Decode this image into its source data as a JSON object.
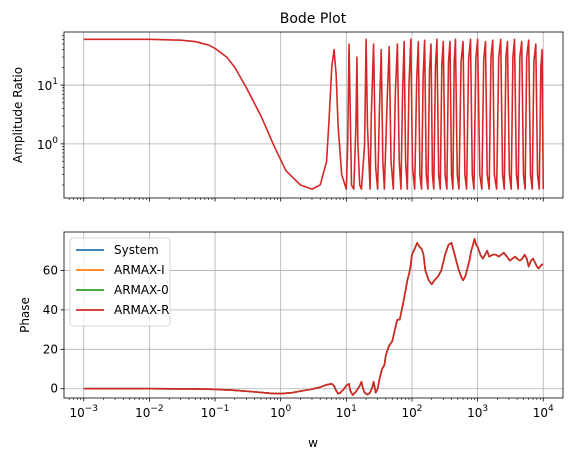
{
  "chart_data": [
    {
      "type": "line",
      "title": "Bode Plot",
      "xlabel": "",
      "ylabel": "Amplitude Ratio",
      "xscale": "log",
      "yscale": "log",
      "xlim": [
        0.0005,
        20000
      ],
      "ylim": [
        0.12,
        80
      ],
      "x_ticks": [
        {
          "value": 0.001,
          "label": ""
        },
        {
          "value": 0.01,
          "label": ""
        },
        {
          "value": 0.1,
          "label": ""
        },
        {
          "value": 1,
          "label": ""
        },
        {
          "value": 10,
          "label": ""
        },
        {
          "value": 100,
          "label": ""
        },
        {
          "value": 1000,
          "label": ""
        },
        {
          "value": 10000,
          "label": ""
        }
      ],
      "y_ticks": [
        {
          "value": 1,
          "base": "10",
          "exp": "0"
        },
        {
          "value": 10,
          "base": "10",
          "exp": "1"
        }
      ],
      "grid": true,
      "color": "#d62728",
      "curve": [
        [
          0.001,
          60
        ],
        [
          0.01,
          60
        ],
        [
          0.03,
          58
        ],
        [
          0.05,
          55
        ],
        [
          0.08,
          48
        ],
        [
          0.1,
          42
        ],
        [
          0.15,
          30
        ],
        [
          0.2,
          20
        ],
        [
          0.3,
          9
        ],
        [
          0.5,
          3
        ],
        [
          0.8,
          0.9
        ],
        [
          1.2,
          0.35
        ],
        [
          2,
          0.2
        ],
        [
          3,
          0.17
        ],
        [
          4,
          0.2
        ],
        [
          5,
          0.5
        ],
        [
          5.5,
          3
        ],
        [
          6,
          20
        ],
        [
          6.5,
          40
        ],
        [
          7,
          15
        ],
        [
          7.5,
          2
        ],
        [
          8.5,
          0.3
        ],
        [
          10,
          0.17
        ],
        [
          10.5,
          1
        ],
        [
          11,
          50
        ],
        [
          11.5,
          3
        ],
        [
          12,
          0.2
        ],
        [
          13,
          0.17
        ],
        [
          14,
          2
        ],
        [
          14.5,
          30
        ],
        [
          15,
          1
        ],
        [
          16,
          0.2
        ],
        [
          17,
          0.17
        ],
        [
          19,
          1
        ],
        [
          20,
          60
        ],
        [
          21,
          2
        ],
        [
          23,
          0.17
        ],
        [
          24,
          3
        ],
        [
          26,
          50
        ],
        [
          28,
          0.4
        ],
        [
          30,
          0.17
        ],
        [
          32,
          4
        ],
        [
          34,
          40
        ],
        [
          36,
          0.5
        ],
        [
          38,
          0.17
        ],
        [
          42,
          6
        ],
        [
          45,
          45
        ],
        [
          48,
          0.5
        ],
        [
          52,
          0.17
        ],
        [
          56,
          8
        ],
        [
          60,
          50
        ],
        [
          64,
          0.5
        ],
        [
          68,
          0.17
        ],
        [
          72,
          8
        ],
        [
          76,
          55
        ],
        [
          80,
          0.5
        ],
        [
          85,
          0.17
        ],
        [
          90,
          10
        ],
        [
          96,
          60
        ],
        [
          102,
          0.4
        ],
        [
          110,
          0.17
        ],
        [
          118,
          12
        ],
        [
          125,
          55
        ],
        [
          132,
          0.3
        ],
        [
          140,
          0.17
        ],
        [
          148,
          14
        ],
        [
          156,
          58
        ],
        [
          165,
          0.3
        ],
        [
          175,
          0.17
        ],
        [
          185,
          18
        ],
        [
          195,
          50
        ],
        [
          205,
          0.3
        ],
        [
          215,
          0.17
        ],
        [
          228,
          20
        ],
        [
          240,
          60
        ],
        [
          255,
          0.3
        ],
        [
          270,
          0.17
        ],
        [
          285,
          22
        ],
        [
          300,
          55
        ],
        [
          320,
          0.3
        ],
        [
          340,
          0.17
        ],
        [
          360,
          25
        ],
        [
          380,
          55
        ],
        [
          400,
          0.3
        ],
        [
          420,
          0.17
        ],
        [
          440,
          25
        ],
        [
          460,
          60
        ],
        [
          490,
          0.3
        ],
        [
          520,
          0.17
        ],
        [
          560,
          25
        ],
        [
          600,
          55
        ],
        [
          640,
          0.3
        ],
        [
          680,
          0.17
        ],
        [
          730,
          28
        ],
        [
          780,
          60
        ],
        [
          830,
          0.3
        ],
        [
          880,
          0.17
        ],
        [
          940,
          28
        ],
        [
          1000,
          60
        ],
        [
          1080,
          0.3
        ],
        [
          1160,
          0.17
        ],
        [
          1240,
          28
        ],
        [
          1320,
          55
        ],
        [
          1400,
          0.3
        ],
        [
          1500,
          0.17
        ],
        [
          1600,
          30
        ],
        [
          1700,
          58
        ],
        [
          1800,
          0.3
        ],
        [
          1950,
          0.17
        ],
        [
          2100,
          30
        ],
        [
          2250,
          60
        ],
        [
          2400,
          0.3
        ],
        [
          2550,
          0.17
        ],
        [
          2700,
          30
        ],
        [
          2850,
          55
        ],
        [
          3050,
          0.3
        ],
        [
          3250,
          0.17
        ],
        [
          3450,
          30
        ],
        [
          3650,
          60
        ],
        [
          3900,
          0.3
        ],
        [
          4150,
          0.17
        ],
        [
          4400,
          30
        ],
        [
          4700,
          55
        ],
        [
          5000,
          0.3
        ],
        [
          5300,
          0.17
        ],
        [
          5600,
          30
        ],
        [
          6000,
          58
        ],
        [
          6400,
          0.3
        ],
        [
          6800,
          0.17
        ],
        [
          7200,
          25
        ],
        [
          7700,
          50
        ],
        [
          8200,
          0.3
        ],
        [
          8700,
          0.17
        ],
        [
          9200,
          20
        ],
        [
          9600,
          40
        ],
        [
          10000,
          0.17
        ]
      ]
    },
    {
      "type": "line",
      "title": "",
      "xlabel": "w",
      "ylabel": "Phase",
      "xscale": "log",
      "yscale": "linear",
      "xlim": [
        0.0005,
        20000
      ],
      "ylim": [
        -4.7,
        79.5
      ],
      "x_ticks": [
        {
          "value": 0.001,
          "base": "10",
          "exp": "−3"
        },
        {
          "value": 0.01,
          "base": "10",
          "exp": "−2"
        },
        {
          "value": 0.1,
          "base": "10",
          "exp": "−1"
        },
        {
          "value": 1,
          "base": "10",
          "exp": "0"
        },
        {
          "value": 10,
          "base": "10",
          "exp": "1"
        },
        {
          "value": 100,
          "base": "10",
          "exp": "2"
        },
        {
          "value": 1000,
          "base": "10",
          "exp": "3"
        },
        {
          "value": 10000,
          "base": "10",
          "exp": "4"
        }
      ],
      "y_ticks": [
        {
          "value": 0,
          "label": "0"
        },
        {
          "value": 20,
          "label": "20"
        },
        {
          "value": 40,
          "label": "40"
        },
        {
          "value": 60,
          "label": "60"
        }
      ],
      "grid": true,
      "legend_position": "upper-left",
      "series": [
        {
          "name": "System",
          "color": "#1f77b4"
        },
        {
          "name": "ARMAX-I",
          "color": "#ff7f0e"
        },
        {
          "name": "ARMAX-0",
          "color": "#2ca02c"
        },
        {
          "name": "ARMAX-R",
          "color": "#d62728"
        }
      ],
      "curve": [
        [
          0.001,
          0
        ],
        [
          0.01,
          0
        ],
        [
          0.05,
          -0.1
        ],
        [
          0.1,
          -0.3
        ],
        [
          0.2,
          -0.8
        ],
        [
          0.4,
          -1.6
        ],
        [
          0.7,
          -2.3
        ],
        [
          1,
          -2.5
        ],
        [
          1.5,
          -2.0
        ],
        [
          2,
          -1.2
        ],
        [
          3,
          -0.2
        ],
        [
          4,
          0.8
        ],
        [
          5,
          2.0
        ],
        [
          6,
          2.5
        ],
        [
          6.5,
          1.5
        ],
        [
          7,
          -1.0
        ],
        [
          7.5,
          -2.5
        ],
        [
          8,
          -2.2
        ],
        [
          9,
          -0.5
        ],
        [
          10,
          1.5
        ],
        [
          11,
          2.5
        ],
        [
          11.5,
          -1
        ],
        [
          12.5,
          -3.2
        ],
        [
          14,
          -1.5
        ],
        [
          16,
          1.5
        ],
        [
          17,
          3.5
        ],
        [
          18,
          0
        ],
        [
          19,
          -2
        ],
        [
          21,
          -3
        ],
        [
          23,
          -2
        ],
        [
          25,
          1
        ],
        [
          26,
          3.5
        ],
        [
          27,
          1
        ],
        [
          28,
          -2
        ],
        [
          30,
          0
        ],
        [
          32,
          5
        ],
        [
          35,
          10
        ],
        [
          38,
          12
        ],
        [
          40,
          17
        ],
        [
          45,
          22
        ],
        [
          50,
          24
        ],
        [
          55,
          30
        ],
        [
          60,
          35
        ],
        [
          65,
          35
        ],
        [
          70,
          40
        ],
        [
          75,
          45
        ],
        [
          80,
          50
        ],
        [
          85,
          55
        ],
        [
          90,
          58
        ],
        [
          95,
          62
        ],
        [
          100,
          68
        ],
        [
          110,
          71
        ],
        [
          120,
          74
        ],
        [
          130,
          72
        ],
        [
          140,
          71
        ],
        [
          150,
          68
        ],
        [
          160,
          60
        ],
        [
          180,
          55
        ],
        [
          200,
          53
        ],
        [
          220,
          55
        ],
        [
          250,
          57
        ],
        [
          280,
          60
        ],
        [
          320,
          68
        ],
        [
          360,
          73
        ],
        [
          400,
          74
        ],
        [
          440,
          69
        ],
        [
          480,
          64
        ],
        [
          520,
          60
        ],
        [
          560,
          57
        ],
        [
          600,
          55
        ],
        [
          650,
          57
        ],
        [
          700,
          61
        ],
        [
          750,
          65
        ],
        [
          800,
          70
        ],
        [
          850,
          73
        ],
        [
          900,
          76
        ],
        [
          950,
          73
        ],
        [
          1000,
          72
        ],
        [
          1100,
          68
        ],
        [
          1200,
          66
        ],
        [
          1300,
          68
        ],
        [
          1400,
          70
        ],
        [
          1500,
          67
        ],
        [
          1700,
          68
        ],
        [
          1900,
          68
        ],
        [
          2100,
          67
        ],
        [
          2300,
          68
        ],
        [
          2500,
          69
        ],
        [
          2800,
          67
        ],
        [
          3100,
          65
        ],
        [
          3400,
          66
        ],
        [
          3700,
          67
        ],
        [
          4000,
          66
        ],
        [
          4400,
          65
        ],
        [
          4800,
          66
        ],
        [
          5200,
          68
        ],
        [
          5600,
          66
        ],
        [
          6000,
          62
        ],
        [
          6500,
          65
        ],
        [
          7000,
          66
        ],
        [
          7500,
          64
        ],
        [
          8000,
          62
        ],
        [
          8500,
          61
        ],
        [
          9000,
          62
        ],
        [
          9500,
          63
        ],
        [
          10000,
          63
        ]
      ]
    }
  ]
}
